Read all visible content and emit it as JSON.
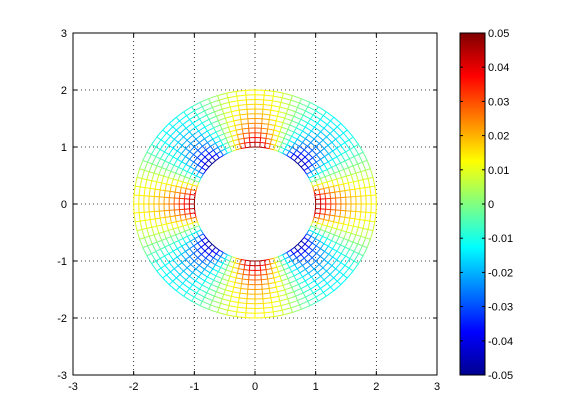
{
  "chart_data": {
    "type": "mesh",
    "title": "",
    "xlabel": "",
    "ylabel": "",
    "xlim": [
      -3,
      3
    ],
    "ylim": [
      -3,
      3
    ],
    "x_ticks": [
      -3,
      -2,
      -1,
      0,
      1,
      2,
      3
    ],
    "y_ticks": [
      -3,
      -2,
      -1,
      0,
      1,
      2,
      3
    ],
    "x_tick_labels": [
      "-3",
      "-2",
      "-1",
      "0",
      "1",
      "2",
      "3"
    ],
    "y_tick_labels": [
      "-3",
      "-2",
      "-1",
      "0",
      "1",
      "2",
      "3"
    ],
    "grid": true,
    "grid_style": "dotted",
    "mesh": {
      "inner_radius": 1,
      "outer_radius": 2,
      "radial_divisions": 12,
      "angular_divisions": 80,
      "field": "a * cos(4*theta) * ((inner_radius/r)^2)",
      "field_amplitude": 0.05
    },
    "colorbar": {
      "colormap": "jet",
      "clim": [
        -0.05,
        0.05
      ],
      "ticks": [
        0.05,
        0.04,
        0.03,
        0.02,
        0.01,
        0,
        -0.01,
        -0.02,
        -0.03,
        -0.04,
        -0.05
      ],
      "tick_labels": [
        "0.05",
        "0.04",
        "0.03",
        "0.02",
        "0.01",
        "0",
        "-0.01",
        "-0.02",
        "-0.03",
        "-0.04",
        "-0.05"
      ],
      "placement": "right"
    }
  }
}
